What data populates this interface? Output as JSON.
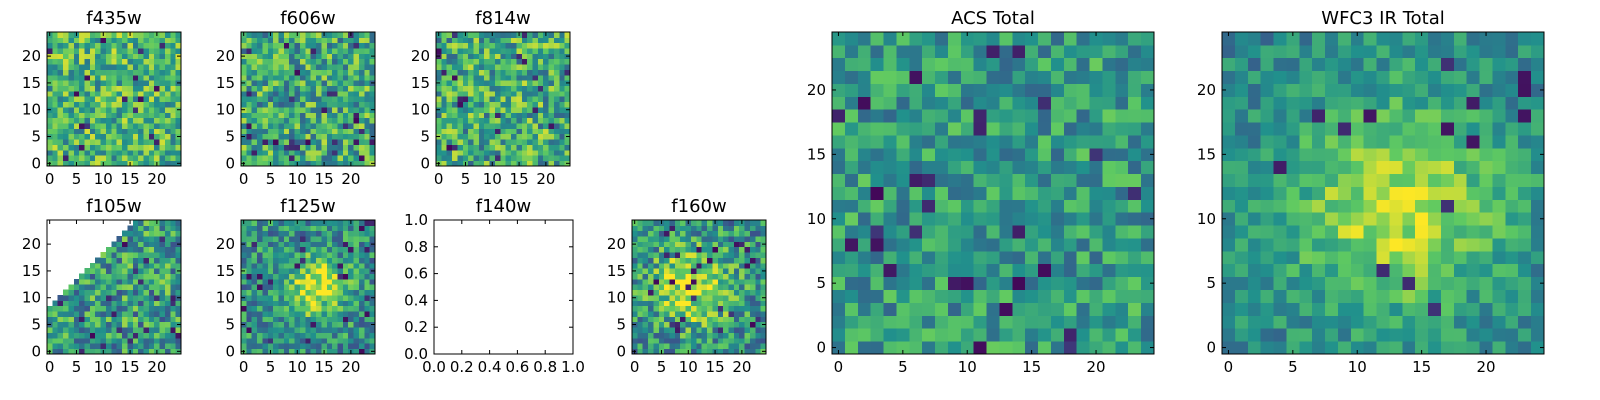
{
  "colormap": {
    "name": "viridis",
    "stops": [
      "#440154",
      "#3b528b",
      "#21918c",
      "#5ec962",
      "#fde725"
    ]
  },
  "chart_data": [
    {
      "type": "heatmap",
      "title": "f435w",
      "grid_size": 25,
      "xlim": [
        0,
        24
      ],
      "ylim": [
        0,
        24
      ],
      "xticks": [
        "0",
        "5",
        "10",
        "15",
        "20"
      ],
      "yticks": [
        "0",
        "5",
        "10",
        "15",
        "20"
      ],
      "pattern": "noise",
      "mean": 0.66,
      "spread": 0.28,
      "dark": 0.03
    },
    {
      "type": "heatmap",
      "title": "f606w",
      "grid_size": 25,
      "xlim": [
        0,
        24
      ],
      "ylim": [
        0,
        24
      ],
      "xticks": [
        "0",
        "5",
        "10",
        "15",
        "20"
      ],
      "yticks": [
        "0",
        "5",
        "10",
        "15",
        "20"
      ],
      "pattern": "noise",
      "mean": 0.6,
      "spread": 0.3,
      "dark": 0.04
    },
    {
      "type": "heatmap",
      "title": "f814w",
      "grid_size": 25,
      "xlim": [
        0,
        24
      ],
      "ylim": [
        0,
        24
      ],
      "xticks": [
        "0",
        "5",
        "10",
        "15",
        "20"
      ],
      "yticks": [
        "0",
        "5",
        "10",
        "15",
        "20"
      ],
      "pattern": "noise",
      "mean": 0.62,
      "spread": 0.3,
      "dark": 0.03
    },
    {
      "type": "heatmap",
      "title": "f105w",
      "grid_size": 25,
      "xlim": [
        0,
        24
      ],
      "ylim": [
        0,
        24
      ],
      "xticks": [
        "0",
        "5",
        "10",
        "15",
        "20"
      ],
      "yticks": [
        "0",
        "5",
        "10",
        "15",
        "20"
      ],
      "pattern": "noise",
      "mean": 0.55,
      "spread": 0.3,
      "dark": 0.05,
      "masked_region": "upper-left triangle"
    },
    {
      "type": "heatmap",
      "title": "f125w",
      "grid_size": 25,
      "xlim": [
        0,
        24
      ],
      "ylim": [
        0,
        24
      ],
      "xticks": [
        "0",
        "5",
        "10",
        "15",
        "20"
      ],
      "yticks": [
        "0",
        "5",
        "10",
        "15",
        "20"
      ],
      "pattern": "blob",
      "mean": 0.5,
      "spread": 0.26,
      "dark": 0.05,
      "blob_center": [
        13,
        12
      ],
      "blob_radius": 4
    },
    {
      "type": "empty",
      "title": "f140w",
      "xlim": [
        0,
        1
      ],
      "ylim": [
        0,
        1
      ],
      "xticks": [
        "0.0",
        "0.2",
        "0.4",
        "0.6",
        "0.8",
        "1.0"
      ],
      "yticks": [
        "0.0",
        "0.2",
        "0.4",
        "0.6",
        "0.8",
        "1.0"
      ]
    },
    {
      "type": "heatmap",
      "title": "f160w",
      "grid_size": 25,
      "xlim": [
        0,
        24
      ],
      "ylim": [
        0,
        24
      ],
      "xticks": [
        "0",
        "5",
        "10",
        "15",
        "20"
      ],
      "yticks": [
        "0",
        "5",
        "10",
        "15",
        "20"
      ],
      "pattern": "blob",
      "mean": 0.5,
      "spread": 0.28,
      "dark": 0.05,
      "blob_center": [
        11,
        12
      ],
      "blob_radius": 5
    },
    {
      "type": "heatmap",
      "title": "ACS Total",
      "grid_size": 25,
      "xlim": [
        0,
        24
      ],
      "ylim": [
        0,
        24
      ],
      "xticks": [
        "0",
        "5",
        "10",
        "15",
        "20"
      ],
      "yticks": [
        "0",
        "5",
        "10",
        "15",
        "20"
      ],
      "pattern": "noise",
      "mean": 0.55,
      "spread": 0.22,
      "dark": 0.04
    },
    {
      "type": "heatmap",
      "title": "WFC3 IR Total",
      "grid_size": 25,
      "xlim": [
        0,
        24
      ],
      "ylim": [
        0,
        24
      ],
      "xticks": [
        "0",
        "5",
        "10",
        "15",
        "20"
      ],
      "yticks": [
        "0",
        "5",
        "10",
        "15",
        "20"
      ],
      "pattern": "blob",
      "mean": 0.45,
      "spread": 0.16,
      "dark": 0.02,
      "blob_center": [
        13,
        11
      ],
      "blob_radius": 6
    }
  ]
}
